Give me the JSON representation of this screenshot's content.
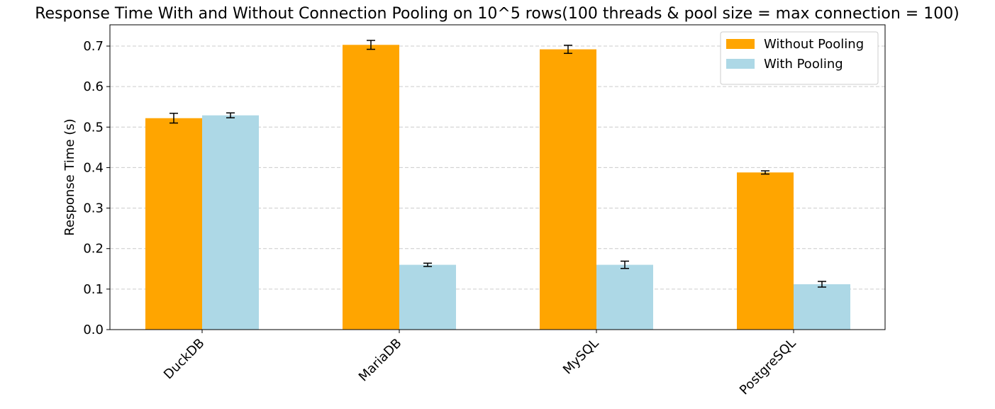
{
  "chart_data": {
    "type": "bar",
    "title": "Response Time With and Without Connection Pooling on 10^5 rows(100 threads & pool size = max connection = 100)",
    "y_label": "Response Time (s)",
    "categories": [
      "DuckDB",
      "MariaDB",
      "MySQL",
      "PostgreSQL"
    ],
    "series": [
      {
        "name": "Without Pooling",
        "color": "#ffa500",
        "values": [
          0.522,
          0.703,
          0.692,
          0.388
        ],
        "errors": [
          0.012,
          0.011,
          0.01,
          0.004
        ]
      },
      {
        "name": "With Pooling",
        "color": "#add8e6",
        "values": [
          0.529,
          0.16,
          0.16,
          0.112
        ],
        "errors": [
          0.006,
          0.004,
          0.009,
          0.007
        ]
      }
    ],
    "ylim": [
      0,
      0.7525
    ],
    "yticks": [
      {
        "value": 0,
        "label": "0.0"
      },
      0.1,
      0.2,
      0.3,
      0.4,
      0.5,
      0.6,
      0.7
    ],
    "grid": true,
    "legend": "upper right"
  }
}
